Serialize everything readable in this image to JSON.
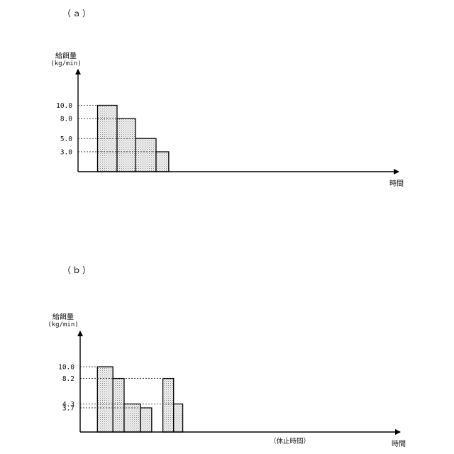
{
  "chart_data": [
    {
      "panel": "（ａ）",
      "type": "bar",
      "ylabel": "給餌量",
      "yunit": "(kg/min)",
      "xlabel": "時間",
      "ticks": [
        "10.0",
        "8.0",
        "5.0",
        "3.0"
      ],
      "tick_values": [
        10.0,
        8.0,
        5.0,
        3.0
      ],
      "ylim": [
        0,
        13
      ],
      "bars": [
        {
          "start": 1.0,
          "end": 2.0,
          "value": 10.0
        },
        {
          "start": 2.0,
          "end": 2.95,
          "value": 8.0
        },
        {
          "start": 2.95,
          "end": 4.0,
          "value": 5.0
        },
        {
          "start": 4.0,
          "end": 4.65,
          "value": 3.0
        }
      ],
      "xlim": [
        0,
        5.3
      ]
    },
    {
      "panel": "（ｂ）",
      "type": "bar",
      "ylabel": "給餌量",
      "yunit": "(kg/min)",
      "xlabel": "時間",
      "ticks": [
        "10.0",
        "8.2",
        "4.3",
        "3.7"
      ],
      "tick_values": [
        10.0,
        8.2,
        4.3,
        3.7
      ],
      "ylim": [
        0,
        13
      ],
      "bars": [
        {
          "start": 1.0,
          "end": 1.9,
          "value": 10.0
        },
        {
          "start": 1.9,
          "end": 2.55,
          "value": 8.2
        },
        {
          "start": 2.55,
          "end": 3.5,
          "value": 4.3
        },
        {
          "start": 3.5,
          "end": 4.15,
          "value": 3.7
        },
        {
          "start": 4.8,
          "end": 5.42,
          "value": 8.2
        },
        {
          "start": 5.42,
          "end": 5.95,
          "value": 4.3
        }
      ],
      "xlim": [
        0,
        6.6
      ],
      "annotation": "（休止時間）"
    }
  ]
}
